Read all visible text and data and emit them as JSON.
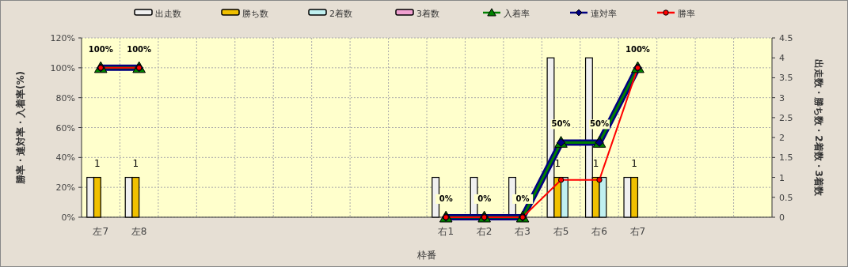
{
  "chart_data": {
    "type": "bar",
    "xlabel": "枠番",
    "ylabel": "勝率・連対率・入着率(%)",
    "y2label": "出走数・勝ち数・2着数・3着数",
    "categories": [
      "左7",
      "左8",
      null,
      null,
      null,
      null,
      null,
      null,
      null,
      "右1",
      "右2",
      "右3",
      "右5",
      "右6",
      "右7",
      null,
      null,
      null
    ],
    "series": [
      {
        "name": "出走数",
        "type": "bar",
        "axis": "y2",
        "color": "#f0f0f0",
        "values": [
          1,
          1,
          null,
          null,
          null,
          null,
          null,
          null,
          null,
          1,
          1,
          1,
          4,
          4,
          1,
          null,
          null,
          null
        ]
      },
      {
        "name": "勝ち数",
        "type": "bar",
        "axis": "y2",
        "color": "#f0c000",
        "values": [
          1,
          1,
          null,
          null,
          null,
          null,
          null,
          null,
          null,
          0,
          0,
          0,
          1,
          1,
          1,
          null,
          null,
          null
        ],
        "value_labels": [
          "1",
          "1",
          null,
          null,
          null,
          null,
          null,
          null,
          null,
          null,
          null,
          null,
          "1",
          "1",
          "1",
          null,
          null,
          null
        ]
      },
      {
        "name": "2着数",
        "type": "bar",
        "axis": "y2",
        "color": "#c0f0f0",
        "values": [
          0,
          0,
          null,
          null,
          null,
          null,
          null,
          null,
          null,
          0,
          0,
          0,
          1,
          1,
          0,
          null,
          null,
          null
        ]
      },
      {
        "name": "3着数",
        "type": "bar",
        "axis": "y2",
        "color": "#f0a0d0",
        "values": [
          0,
          0,
          null,
          null,
          null,
          null,
          null,
          null,
          null,
          0,
          0,
          0,
          0,
          0,
          0,
          null,
          null,
          null
        ]
      },
      {
        "name": "入着率",
        "type": "line",
        "color": "#008000",
        "marker": "triangle",
        "values": [
          100,
          100,
          null,
          null,
          null,
          null,
          null,
          null,
          null,
          0,
          0,
          0,
          50,
          50,
          100,
          null,
          null,
          null
        ],
        "value_labels": [
          "100%",
          "100%",
          null,
          null,
          null,
          null,
          null,
          null,
          null,
          "0%",
          "0%",
          "0%",
          "50%",
          "50%",
          "100%",
          null,
          null,
          null
        ]
      },
      {
        "name": "連対率",
        "type": "line",
        "color": "#000080",
        "marker": "diamond",
        "values": [
          100,
          100,
          null,
          null,
          null,
          null,
          null,
          null,
          null,
          0,
          0,
          0,
          50,
          50,
          100,
          null,
          null,
          null
        ]
      },
      {
        "name": "勝率",
        "type": "line",
        "color": "#ff0000",
        "marker": "circle",
        "values": [
          100,
          100,
          null,
          null,
          null,
          null,
          null,
          null,
          null,
          0,
          0,
          0,
          25,
          25,
          100,
          null,
          null,
          null
        ]
      }
    ],
    "ylim": [
      0,
      120
    ],
    "yticks": [
      {
        "value": 0,
        "label": "0%"
      },
      {
        "value": 20,
        "label": "20%"
      },
      {
        "value": 40,
        "label": "40%"
      },
      {
        "value": 60,
        "label": "60%"
      },
      {
        "value": 80,
        "label": "80%"
      },
      {
        "value": 100,
        "label": "100%"
      },
      {
        "value": 120,
        "label": "120%"
      }
    ],
    "y2lim": [
      0,
      4.5
    ],
    "y2ticks": [
      0,
      0.5,
      1,
      1.5,
      2,
      2.5,
      3,
      3.5,
      4,
      4.5
    ],
    "grid": true,
    "legend": "top"
  }
}
